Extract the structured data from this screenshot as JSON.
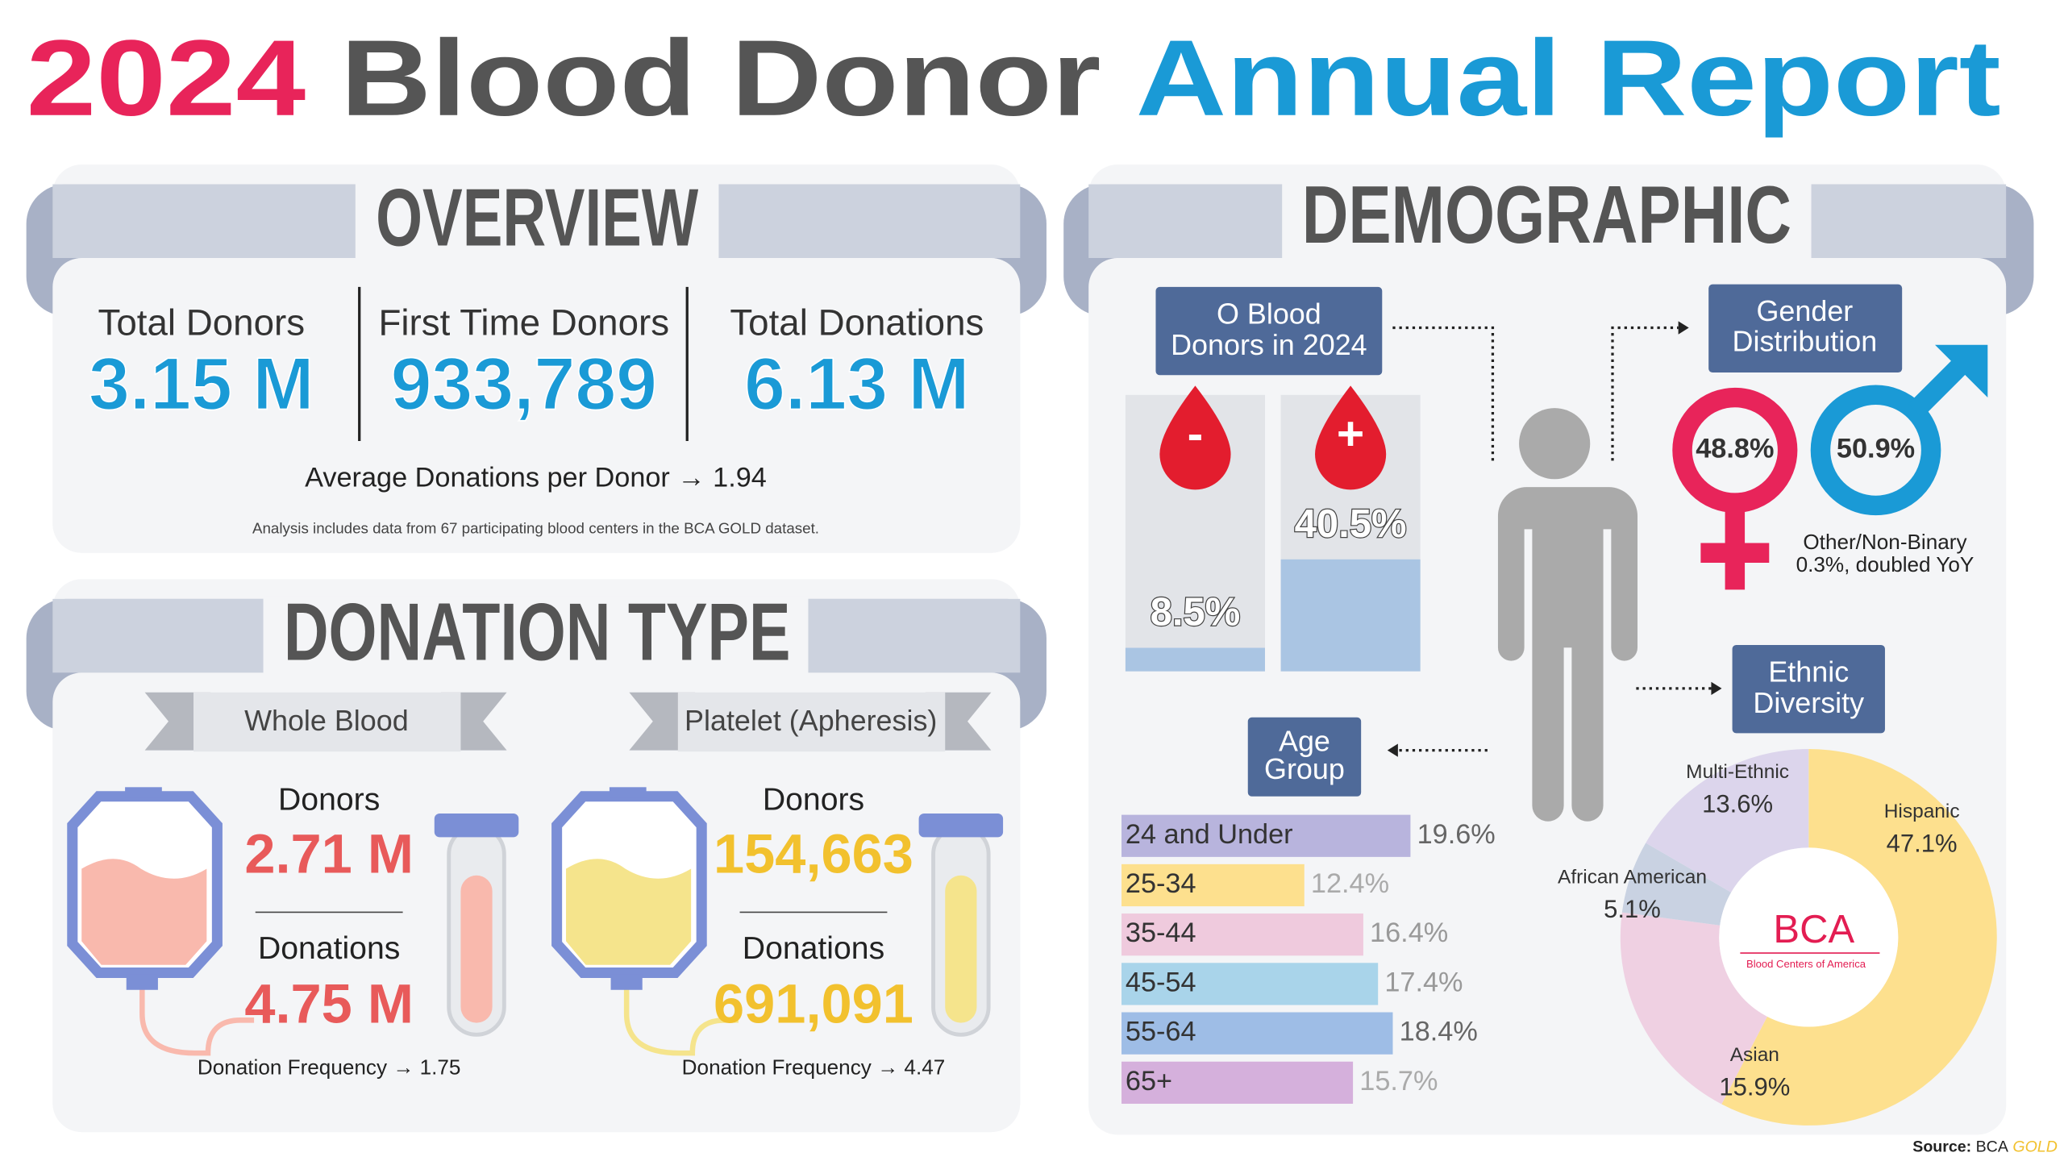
{
  "title": {
    "year": "2024",
    "middle": "Blood Donor",
    "end": "Annual Report"
  },
  "overview": {
    "heading": "OVERVIEW",
    "stats": [
      {
        "label": "Total Donors",
        "value": "3.15 M"
      },
      {
        "label": "First Time Donors",
        "value": "933,789"
      },
      {
        "label": "Total Donations",
        "value": "6.13 M"
      }
    ],
    "average": "Average Donations per Donor → 1.94",
    "note": "Analysis includes data from 67 participating blood centers in the BCA GOLD dataset."
  },
  "donation_type": {
    "heading": "DONATION TYPE",
    "types": [
      {
        "name": "Whole Blood",
        "donors_label": "Donors",
        "donors": "2.71 M",
        "donations_label": "Donations",
        "donations": "4.75 M",
        "frequency": "Donation Frequency → 1.75"
      },
      {
        "name": "Platelet (Apheresis)",
        "donors_label": "Donors",
        "donors": "154,663",
        "donations_label": "Donations",
        "donations": "691,091",
        "frequency": "Donation Frequency → 4.47"
      }
    ]
  },
  "demographic": {
    "heading": "DEMOGRAPHIC",
    "gender": {
      "title": [
        "Gender",
        "Distribution"
      ],
      "female": "48.8%",
      "male": "50.9%",
      "other": [
        "Other/Non-Binary",
        "0.3%, doubled YoY"
      ]
    },
    "logo": {
      "name": "BCA",
      "tagline": "Blood Centers of America"
    }
  },
  "chart_data": [
    {
      "type": "bar",
      "title": [
        "O Blood",
        "Donors in 2024"
      ],
      "categories": [
        "-",
        "+"
      ],
      "values": [
        8.5,
        40.5
      ],
      "value_labels": [
        "8.5%",
        "40.5%"
      ],
      "color": "#aac5e3",
      "ylim": [
        0,
        100
      ]
    },
    {
      "type": "hbar",
      "title": [
        "Age",
        "Group"
      ],
      "categories": [
        "24 and Under",
        "25-34",
        "35-44",
        "45-54",
        "55-64",
        "65+"
      ],
      "values": [
        19.6,
        12.4,
        16.4,
        17.4,
        18.4,
        15.7
      ],
      "value_labels": [
        "19.6%",
        "12.4%",
        "16.4%",
        "17.4%",
        "18.4%",
        "15.7%"
      ],
      "colors": [
        "#b8b4dd",
        "#fde08e",
        "#efcadd",
        "#a9d4ea",
        "#9ebde6",
        "#d5b0dc"
      ],
      "value_label_colors": [
        "#666666",
        "#aaaaaa",
        "#999999",
        "#999999",
        "#666666",
        "#aaaaaa"
      ],
      "xlim": [
        0,
        20
      ]
    },
    {
      "type": "pie",
      "title": [
        "Ethnic",
        "Diversity"
      ],
      "categories": [
        "Hispanic",
        "Asian",
        "African American",
        "Multi-Ethnic"
      ],
      "values": [
        47.1,
        15.9,
        5.1,
        13.6
      ],
      "value_labels": [
        "47.1%",
        "15.9%",
        "5.1%",
        "13.6%"
      ],
      "colors": [
        "#fde08e",
        "#efd0e2",
        "#c9d2e2",
        "#dcd5ec"
      ]
    }
  ],
  "source": {
    "label": "Source:",
    "name": "BCA",
    "gold": "GOLD"
  }
}
